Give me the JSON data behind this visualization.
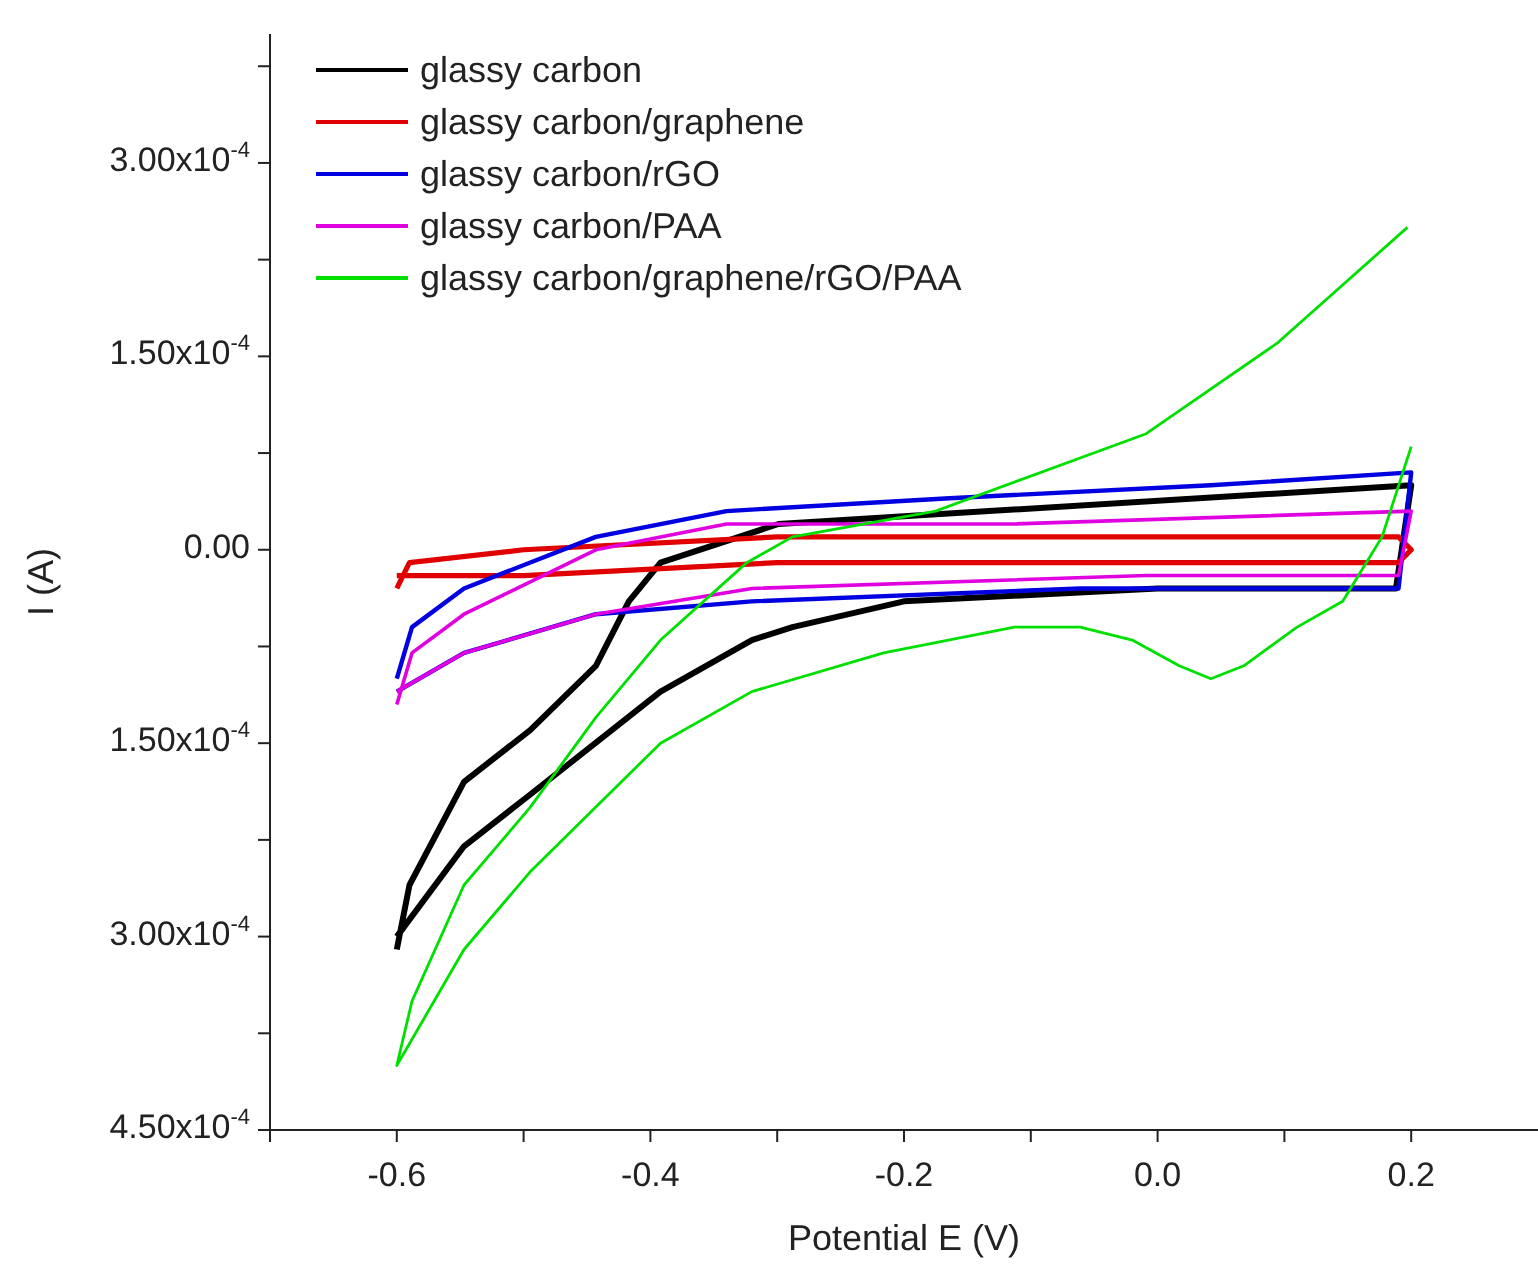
{
  "chart_data": {
    "type": "line",
    "xlabel": "Potential E (V)",
    "ylabel": "I (A)",
    "xlim": [
      -0.7,
      0.3
    ],
    "xticks": [
      {
        "value": -0.7,
        "label": null
      },
      -0.6,
      {
        "value": -0.5,
        "label": null
      },
      -0.4,
      {
        "value": -0.3,
        "label": null
      },
      -0.2,
      {
        "value": -0.1,
        "label": null
      },
      {
        "value": 0,
        "label": "0.0"
      },
      {
        "value": 0.1,
        "label": null
      },
      0.2
    ],
    "ylim": [
      -0.00045,
      0.0004
    ],
    "yticks": [
      {
        "value": 0.000375,
        "label": null
      },
      {
        "value": 0.0003,
        "label": "3.00x10$^{-4}$"
      },
      {
        "value": 0.000225,
        "label": null
      },
      {
        "value": 0.00015,
        "label": "1.50x10$^{-4}$"
      },
      {
        "value": 7.5e-05,
        "label": null
      },
      {
        "value": 0,
        "label": "0.00"
      },
      {
        "value": -7.5e-05,
        "label": null
      },
      {
        "value": -0.00015,
        "label": "1.50x10$^{-4}$"
      },
      {
        "value": -0.000225,
        "label": null
      },
      {
        "value": -0.0003,
        "label": "3.00x10$^{-4}$"
      },
      {
        "value": -0.000375,
        "label": null
      },
      {
        "value": -0.00045,
        "label": "4.50x10$^{-4}$"
      }
    ],
    "grid": false,
    "legend": "top left",
    "marker": "none",
    "line_style": "solid",
    "series": [
      {
        "name": "glassy carbon",
        "color": "#000000",
        "x": [
          -0.6,
          -0.59,
          -0.547,
          -0.495,
          -0.443,
          -0.417,
          -0.392,
          -0.299,
          -0.133,
          0.2,
          0.188,
          0.0,
          -0.2,
          -0.288,
          -0.32,
          -0.392,
          -0.495,
          -0.547,
          -0.6
        ],
        "values": [
          -0.00031,
          -0.00026,
          -0.00018,
          -0.00014,
          -9e-05,
          -4e-05,
          -1e-05,
          2e-05,
          3e-05,
          5e-05,
          -3e-05,
          -3e-05,
          -4e-05,
          -6e-05,
          -7e-05,
          -0.00011,
          -0.00019,
          -0.00023,
          -0.0003
        ]
      },
      {
        "name": "glassy carbon/graphene",
        "color": "#e00000",
        "x": [
          -0.6,
          -0.59,
          -0.5,
          -0.3,
          0.0,
          0.19,
          0.2,
          0.19,
          -0.3,
          -0.5,
          -0.6
        ],
        "values": [
          -3e-05,
          -1e-05,
          0,
          1e-05,
          1e-05,
          1e-05,
          0,
          -1e-05,
          -1e-05,
          -2e-05,
          -2e-05
        ]
      },
      {
        "name": "glassy carbon/rGO",
        "color": "#0000e0",
        "x": [
          -0.6,
          -0.588,
          -0.547,
          -0.443,
          -0.34,
          -0.164,
          0.042,
          0.2,
          0.19,
          -0.061,
          -0.32,
          -0.443,
          -0.547,
          -0.6
        ],
        "values": [
          -0.0001,
          -6e-05,
          -3e-05,
          1e-05,
          3e-05,
          4e-05,
          5e-05,
          6e-05,
          -3e-05,
          -3e-05,
          -4e-05,
          -5e-05,
          -8e-05,
          -0.00011
        ]
      },
      {
        "name": "glassy carbon/PAA",
        "color": "#e000e0",
        "x": [
          -0.6,
          -0.588,
          -0.547,
          -0.443,
          -0.34,
          -0.113,
          0.2,
          0.19,
          -0.009,
          -0.32,
          -0.443,
          -0.547,
          -0.6
        ],
        "values": [
          -0.00012,
          -8e-05,
          -5e-05,
          0,
          2e-05,
          2e-05,
          3e-05,
          -2e-05,
          -2e-05,
          -3e-05,
          -5e-05,
          -8e-05,
          -0.00011
        ]
      },
      {
        "name": "glassy carbon/graphene/rGO/PAA",
        "color": "#00e000",
        "x": [
          0.2,
          0.177,
          0.146,
          0.11,
          0.068,
          0.042,
          0.017,
          -0.02,
          -0.061,
          -0.113,
          -0.216,
          -0.32,
          -0.392,
          -0.495,
          -0.547,
          -0.6,
          -0.588,
          -0.547,
          -0.495,
          -0.443,
          -0.392,
          -0.324,
          -0.288,
          -0.175,
          -0.009,
          0.094,
          0.197
        ],
        "values": [
          8e-05,
          1e-05,
          -4e-05,
          -6e-05,
          -9e-05,
          -0.0001,
          -9e-05,
          -7e-05,
          -6e-05,
          -6e-05,
          -8e-05,
          -0.00011,
          -0.00015,
          -0.00025,
          -0.00031,
          -0.0004,
          -0.00035,
          -0.00026,
          -0.0002,
          -0.00013,
          -7e-05,
          -1e-05,
          1e-05,
          3e-05,
          9e-05,
          0.00016,
          0.00025
        ]
      }
    ]
  }
}
